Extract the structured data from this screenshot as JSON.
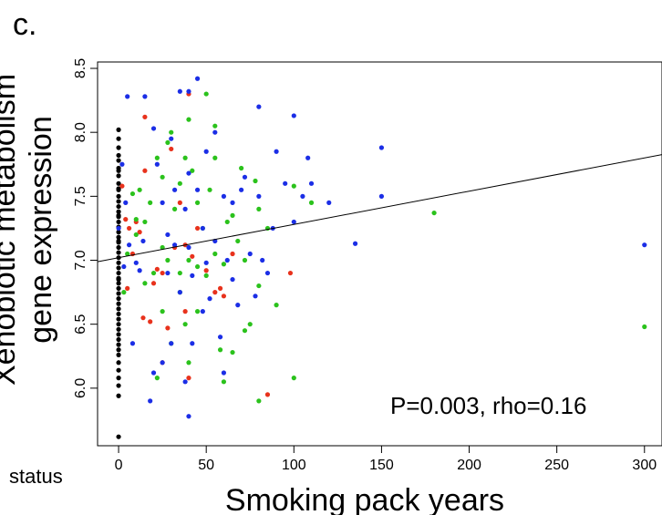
{
  "panel_label": "c.",
  "status_label": "status",
  "chart_data": {
    "type": "scatter",
    "title": "",
    "xlabel": "Smoking pack years",
    "ylabel_lines": [
      "Xenobiotic metabolism",
      "gene expression"
    ],
    "annotation": "P=0.003, rho=0.16",
    "xlim": [
      -12,
      310
    ],
    "ylim": [
      5.55,
      8.55
    ],
    "xticks": [
      0,
      50,
      100,
      150,
      200,
      250,
      300
    ],
    "xtick_labels": [
      "0",
      "50",
      "100",
      "150",
      "200",
      "250",
      "300"
    ],
    "yticks": [
      6.0,
      6.5,
      7.0,
      7.5,
      8.0,
      8.5
    ],
    "ytick_labels": [
      "6.0",
      "6.5",
      "7.0",
      "7.5",
      "8.0",
      "8.5"
    ],
    "grid": false,
    "legend": "none",
    "fit_line": {
      "intercept": 7.02,
      "slope": 0.0026
    },
    "colors": {
      "black": "#000000",
      "red": "#e8321c",
      "green": "#2bc21c",
      "blue": "#1b2ee6"
    },
    "series": [
      {
        "color_key": "black",
        "x": [
          0,
          0,
          0,
          0,
          0,
          0,
          0,
          0,
          0,
          0,
          0,
          0,
          0,
          0,
          0,
          0,
          0,
          0,
          0,
          0,
          0,
          0,
          0,
          0,
          0,
          0,
          0,
          0,
          0,
          0,
          0,
          0,
          0,
          0,
          0,
          0,
          0,
          0,
          0,
          0,
          0,
          0,
          0,
          0,
          0,
          0,
          0,
          0,
          0,
          0,
          0,
          0
        ],
        "y": [
          8.02,
          7.95,
          7.88,
          7.82,
          7.78,
          7.72,
          7.66,
          7.6,
          7.56,
          7.5,
          7.46,
          7.42,
          7.38,
          7.34,
          7.3,
          7.26,
          7.22,
          7.18,
          7.14,
          7.1,
          7.06,
          7.02,
          6.98,
          6.94,
          6.9,
          6.86,
          6.82,
          6.78,
          6.74,
          6.7,
          6.66,
          6.62,
          6.58,
          6.54,
          6.5,
          6.46,
          6.42,
          6.38,
          6.34,
          6.3,
          6.26,
          6.2,
          6.14,
          6.08,
          6.02,
          5.94,
          5.62,
          7.7,
          7.55,
          7.35,
          7.15,
          6.85
        ]
      },
      {
        "color_key": "red",
        "x": [
          2,
          4,
          5,
          8,
          10,
          12,
          14,
          15,
          18,
          20,
          22,
          25,
          28,
          30,
          35,
          38,
          40,
          40,
          42,
          45,
          50,
          55,
          58,
          60,
          65,
          85,
          98,
          6,
          15,
          25,
          32,
          38
        ],
        "y": [
          7.58,
          7.32,
          6.78,
          7.05,
          7.3,
          7.22,
          6.55,
          8.12,
          6.52,
          6.82,
          6.93,
          6.2,
          6.47,
          7.87,
          7.45,
          7.12,
          8.3,
          6.08,
          7.03,
          7.25,
          6.92,
          6.75,
          6.78,
          6.72,
          7.05,
          5.95,
          6.9,
          7.25,
          7.7,
          6.9,
          7.1,
          6.6
        ]
      },
      {
        "color_key": "green",
        "x": [
          3,
          5,
          8,
          10,
          12,
          15,
          15,
          18,
          20,
          22,
          22,
          25,
          25,
          28,
          28,
          30,
          30,
          32,
          35,
          35,
          38,
          38,
          40,
          40,
          40,
          42,
          45,
          45,
          48,
          50,
          50,
          52,
          55,
          55,
          58,
          60,
          60,
          62,
          65,
          68,
          70,
          72,
          75,
          78,
          80,
          80,
          80,
          85,
          90,
          100,
          100,
          110,
          180,
          300,
          10,
          25,
          35,
          45,
          55,
          65,
          72
        ],
        "y": [
          6.75,
          7.05,
          7.52,
          7.32,
          7.55,
          7.3,
          6.82,
          7.45,
          6.9,
          7.8,
          6.08,
          7.65,
          6.6,
          7.0,
          7.92,
          8.0,
          6.35,
          7.4,
          7.6,
          6.9,
          7.8,
          6.5,
          8.1,
          7.0,
          6.2,
          7.7,
          7.45,
          6.6,
          7.25,
          8.3,
          6.88,
          7.55,
          7.05,
          8.05,
          6.3,
          6.97,
          6.05,
          7.3,
          6.28,
          7.15,
          7.72,
          6.45,
          6.5,
          7.62,
          6.8,
          7.4,
          5.9,
          7.25,
          6.65,
          6.08,
          7.58,
          7.45,
          7.37,
          6.48,
          7.2,
          7.1,
          6.75,
          6.95,
          7.8,
          7.35,
          7.0
        ]
      },
      {
        "color_key": "blue",
        "x": [
          0,
          2,
          3,
          4,
          5,
          6,
          8,
          10,
          12,
          14,
          15,
          18,
          20,
          20,
          22,
          25,
          25,
          28,
          28,
          30,
          30,
          32,
          32,
          35,
          35,
          38,
          38,
          40,
          40,
          40,
          42,
          42,
          45,
          45,
          48,
          48,
          50,
          50,
          52,
          55,
          55,
          58,
          60,
          60,
          62,
          65,
          65,
          68,
          70,
          72,
          75,
          78,
          80,
          80,
          82,
          85,
          88,
          90,
          95,
          100,
          100,
          105,
          108,
          110,
          120,
          135,
          150,
          150,
          300,
          40
        ],
        "y": [
          7.25,
          7.75,
          6.95,
          7.45,
          8.28,
          7.12,
          6.35,
          6.98,
          6.92,
          7.15,
          8.28,
          5.9,
          6.12,
          8.03,
          7.75,
          6.2,
          7.45,
          6.9,
          7.2,
          7.95,
          6.35,
          7.12,
          7.55,
          6.75,
          8.32,
          6.05,
          7.4,
          8.32,
          7.1,
          7.68,
          6.88,
          6.35,
          7.55,
          8.42,
          6.6,
          7.25,
          6.98,
          7.85,
          6.7,
          8.0,
          7.15,
          6.4,
          6.12,
          7.5,
          7.0,
          6.85,
          7.45,
          6.65,
          7.55,
          7.65,
          7.05,
          6.72,
          8.2,
          7.5,
          7.0,
          6.9,
          7.25,
          7.85,
          7.6,
          8.13,
          7.3,
          7.5,
          7.8,
          7.6,
          7.45,
          7.13,
          7.88,
          7.5,
          7.12,
          5.78
        ]
      }
    ]
  }
}
